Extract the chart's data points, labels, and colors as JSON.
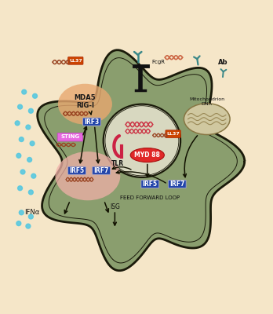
{
  "bg_color": "#f5e6c8",
  "cell_color": "#8a9e6e",
  "cell_border": "#1a1a0a",
  "nucleus_color": "#d8d8c0",
  "nucleus_border": "#1a1a0a",
  "mda5_blob_color": "#e8a870",
  "plasma_blob_color": "#f0b0a8",
  "irf_box_color": "#2244aa",
  "irf_text_color": "#ffffff",
  "myd88_color": "#e03030",
  "sting_color": "#e060e0",
  "mito_color": "#d0c8a0",
  "label_ifna": "IFNα",
  "label_isg": "ISG",
  "label_feed": "FEED FORWARD LOOP",
  "label_mda5": "MDA5\nRIG-I",
  "label_tlr": "TLR",
  "label_myd88": "MYD 88",
  "label_irf3": "IRF3",
  "label_irf5a": "IRF5",
  "label_irf7a": "IRF7",
  "label_irf5b": "IRF5",
  "label_irf7b": "IRF7",
  "label_sting": "STING",
  "label_mito": "Mitochondrion\nDNA",
  "label_fcgr": "FcgR",
  "label_ab": "Ab",
  "dot_color": "#55c8e0",
  "orange_box_color": "#cc4400",
  "teal_ab_color": "#3a8888"
}
